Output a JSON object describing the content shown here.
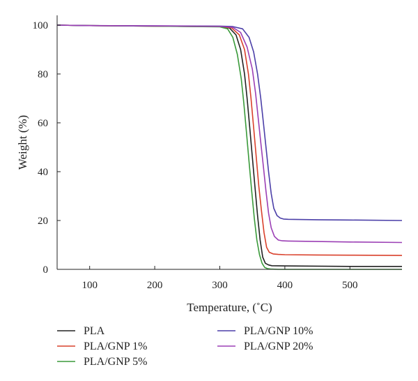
{
  "chart_data": {
    "type": "line",
    "title": "",
    "xlabel": "Temperature, (˚C)",
    "ylabel": "Weight (%)",
    "xlim": [
      50,
      580
    ],
    "ylim": [
      0,
      104
    ],
    "xticks": [
      100,
      200,
      300,
      400,
      500
    ],
    "yticks": [
      0,
      20,
      40,
      60,
      80,
      100
    ],
    "grid": false,
    "legend_position": "bottom",
    "series": [
      {
        "name": "PLA",
        "color": "#222222",
        "x": [
          50,
          100,
          200,
          300,
          315,
          325,
          332,
          338,
          342,
          346,
          350,
          354,
          358,
          362,
          366,
          370,
          375,
          380,
          400,
          450,
          500,
          580
        ],
        "y": [
          100,
          99.8,
          99.6,
          99.4,
          98.8,
          96,
          90,
          80,
          70,
          58,
          46,
          34,
          22,
          12,
          5,
          2.5,
          1.8,
          1.5,
          1.4,
          1.3,
          1.2,
          1.2
        ]
      },
      {
        "name": "PLA/GNP 1%",
        "color": "#d9402b",
        "x": [
          50,
          100,
          200,
          300,
          318,
          330,
          338,
          344,
          348,
          352,
          356,
          360,
          364,
          368,
          372,
          376,
          382,
          390,
          400,
          450,
          500,
          580
        ],
        "y": [
          100,
          99.8,
          99.6,
          99.4,
          98.9,
          96,
          90,
          80,
          70,
          58,
          46,
          34,
          24,
          15,
          9,
          7,
          6.3,
          6.1,
          6.0,
          5.9,
          5.8,
          5.7
        ]
      },
      {
        "name": "PLA/GNP 5%",
        "color": "#3a9a3a",
        "x": [
          50,
          100,
          200,
          300,
          312,
          320,
          327,
          333,
          337,
          341,
          345,
          349,
          353,
          357,
          361,
          365,
          369,
          373,
          378,
          390,
          450,
          580
        ],
        "y": [
          100,
          99.8,
          99.6,
          99.3,
          98.5,
          95,
          88,
          78,
          68,
          56,
          44,
          32,
          21,
          12,
          6,
          2.5,
          0.8,
          0.3,
          0.1,
          0,
          0,
          0
        ]
      },
      {
        "name": "PLA/GNP 10%",
        "color": "#4b3fa8",
        "x": [
          50,
          100,
          200,
          300,
          320,
          335,
          345,
          352,
          358,
          363,
          367,
          371,
          375,
          379,
          383,
          388,
          393,
          398,
          405,
          450,
          500,
          580
        ],
        "y": [
          100,
          99.8,
          99.7,
          99.6,
          99.4,
          98.5,
          95,
          89,
          80,
          70,
          60,
          50,
          40,
          31,
          25,
          22,
          21,
          20.6,
          20.5,
          20.3,
          20.2,
          20.0
        ]
      },
      {
        "name": "PLA/GNP 20%",
        "color": "#9b3fb5",
        "x": [
          50,
          100,
          200,
          300,
          320,
          332,
          342,
          350,
          355,
          359,
          363,
          367,
          371,
          375,
          379,
          384,
          390,
          396,
          405,
          450,
          500,
          580
        ],
        "y": [
          100,
          99.8,
          99.7,
          99.5,
          99.1,
          97,
          91,
          82,
          72,
          62,
          52,
          42,
          32,
          23,
          17,
          13.5,
          12,
          11.7,
          11.6,
          11.4,
          11.2,
          11.0
        ]
      }
    ]
  }
}
